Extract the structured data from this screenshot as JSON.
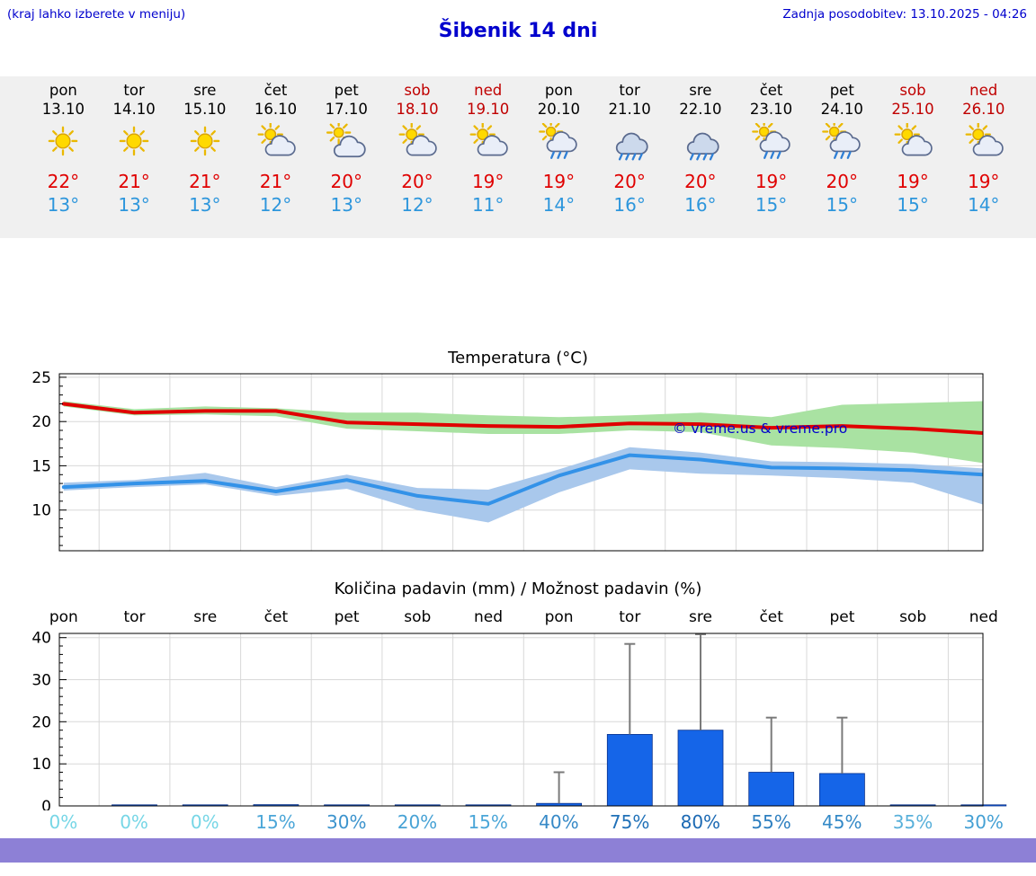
{
  "header": {
    "note": "(kraj lahko izberete v meniju)",
    "updated": "Zadnja posodobitev: 13.10.2025 - 04:26",
    "title": "Šibenik 14 dni"
  },
  "colors": {
    "header_blue": "#0000cd",
    "weekend_red": "#c00000",
    "high_temp_red": "#e00000",
    "low_temp_blue": "#2d96dc",
    "max_band_green": "#a9e2a2",
    "min_band_blue": "#a9c8ec",
    "bar_blue": "#1565e8",
    "footer_purple": "#8d80d6"
  },
  "forecast_days": [
    {
      "name": "pon",
      "date": "13.10",
      "weekend": false,
      "icon": "sun",
      "high": "22°",
      "low": "13°"
    },
    {
      "name": "tor",
      "date": "14.10",
      "weekend": false,
      "icon": "sun",
      "high": "21°",
      "low": "13°"
    },
    {
      "name": "sre",
      "date": "15.10",
      "weekend": false,
      "icon": "sun",
      "high": "21°",
      "low": "13°"
    },
    {
      "name": "čet",
      "date": "16.10",
      "weekend": false,
      "icon": "partly",
      "high": "21°",
      "low": "12°"
    },
    {
      "name": "pet",
      "date": "17.10",
      "weekend": false,
      "icon": "cloudy-sun",
      "high": "20°",
      "low": "13°"
    },
    {
      "name": "sob",
      "date": "18.10",
      "weekend": true,
      "icon": "partly",
      "high": "20°",
      "low": "12°"
    },
    {
      "name": "ned",
      "date": "19.10",
      "weekend": true,
      "icon": "partly",
      "high": "19°",
      "low": "11°"
    },
    {
      "name": "pon",
      "date": "20.10",
      "weekend": false,
      "icon": "shower",
      "high": "19°",
      "low": "14°"
    },
    {
      "name": "tor",
      "date": "21.10",
      "weekend": false,
      "icon": "rain",
      "high": "20°",
      "low": "16°"
    },
    {
      "name": "sre",
      "date": "22.10",
      "weekend": false,
      "icon": "rain",
      "high": "20°",
      "low": "16°"
    },
    {
      "name": "čet",
      "date": "23.10",
      "weekend": false,
      "icon": "shower",
      "high": "19°",
      "low": "15°"
    },
    {
      "name": "pet",
      "date": "24.10",
      "weekend": false,
      "icon": "shower",
      "high": "20°",
      "low": "15°"
    },
    {
      "name": "sob",
      "date": "25.10",
      "weekend": true,
      "icon": "partly",
      "high": "19°",
      "low": "15°"
    },
    {
      "name": "ned",
      "date": "26.10",
      "weekend": true,
      "icon": "partly",
      "high": "19°",
      "low": "14°"
    }
  ],
  "chart_data": [
    {
      "type": "line",
      "title": "Temperatura (°C)",
      "categories": [
        "pon",
        "tor",
        "sre",
        "čet",
        "pet",
        "sob",
        "ned",
        "pon",
        "tor",
        "sre",
        "čet",
        "pet",
        "sob",
        "ned"
      ],
      "ylim": [
        5.4,
        25.4
      ],
      "yticks": [
        10,
        15,
        20,
        25
      ],
      "grid": true,
      "watermark": "© vreme.us & vreme.pro",
      "series": [
        {
          "name": "max_temp",
          "color": "#e00000",
          "values": [
            22,
            21,
            21.2,
            21.2,
            19.9,
            19.7,
            19.5,
            19.4,
            19.8,
            19.7,
            19.3,
            19.5,
            19.2,
            18.7
          ]
        },
        {
          "name": "min_temp",
          "color": "#3392e8",
          "values": [
            12.6,
            13,
            13.3,
            12.1,
            13.4,
            11.6,
            10.7,
            13.9,
            16.2,
            15.7,
            14.8,
            14.7,
            14.5,
            14
          ]
        }
      ],
      "band_max": {
        "upper": [
          22.3,
          21.4,
          21.7,
          21.5,
          21.0,
          21.0,
          20.7,
          20.5,
          20.7,
          21.0,
          20.5,
          21.9,
          22.1,
          22.3
        ],
        "lower": [
          21.7,
          20.7,
          20.8,
          20.6,
          19.2,
          18.9,
          18.6,
          18.6,
          19.0,
          18.8,
          17.3,
          17.0,
          16.5,
          15.3
        ]
      },
      "band_min": {
        "upper": [
          13.1,
          13.4,
          14.2,
          12.6,
          14.0,
          12.5,
          12.3,
          14.6,
          17.1,
          16.5,
          15.5,
          15.4,
          15.2,
          14.7
        ],
        "lower": [
          12.2,
          12.6,
          12.9,
          11.6,
          12.4,
          10.0,
          8.6,
          12.0,
          14.6,
          14.1,
          13.9,
          13.6,
          13.1,
          10.6
        ]
      }
    },
    {
      "type": "bar",
      "title": "Količina padavin (mm) / Možnost padavin (%)",
      "categories": [
        "pon",
        "tor",
        "sre",
        "čet",
        "pet",
        "sob",
        "ned",
        "pon",
        "tor",
        "sre",
        "čet",
        "pet",
        "sob",
        "ned"
      ],
      "ylim": [
        0,
        41
      ],
      "yticks": [
        0,
        10,
        20,
        30,
        40
      ],
      "ylabel": "mm",
      "values": [
        0,
        0.2,
        0.2,
        0.3,
        0.2,
        0.2,
        0.2,
        0.6,
        17,
        18,
        8,
        7.7,
        0.2,
        0.2
      ],
      "whisker_max": [
        0,
        0,
        0,
        0,
        0,
        0,
        0,
        8,
        38.5,
        40.8,
        21,
        21,
        0,
        0
      ],
      "probabilities": [
        {
          "label": "0%",
          "color": "#76d6e6"
        },
        {
          "label": "0%",
          "color": "#76d6e6"
        },
        {
          "label": "0%",
          "color": "#76d6e6"
        },
        {
          "label": "15%",
          "color": "#4ba6d8"
        },
        {
          "label": "30%",
          "color": "#3b93cd"
        },
        {
          "label": "20%",
          "color": "#47a2d5"
        },
        {
          "label": "15%",
          "color": "#4ba6d8"
        },
        {
          "label": "40%",
          "color": "#3689c7"
        },
        {
          "label": "75%",
          "color": "#2071b8"
        },
        {
          "label": "80%",
          "color": "#1b69b3"
        },
        {
          "label": "55%",
          "color": "#2d7fc0"
        },
        {
          "label": "45%",
          "color": "#3389c7"
        },
        {
          "label": "35%",
          "color": "#58b0da"
        },
        {
          "label": "30%",
          "color": "#44a0d4"
        }
      ]
    }
  ]
}
